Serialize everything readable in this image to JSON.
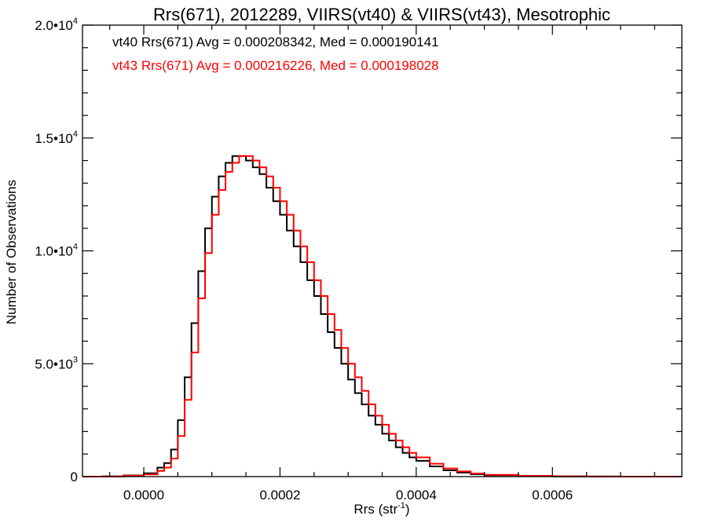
{
  "chart_data": {
    "type": "line",
    "step": true,
    "title": "Rrs(671), 2012289, VIIRS(vt40) & VIIRS(vt43), Mesotrophic",
    "xlabel": {
      "base": "Rrs (str",
      "sup": "-1",
      "tail": ")"
    },
    "ylabel": "Number of Observations",
    "xlim": [
      -9e-05,
      0.00079
    ],
    "ylim": [
      0,
      20000
    ],
    "x_ticks": [
      {
        "value": 0.0,
        "label": "0.0000"
      },
      {
        "value": 0.0002,
        "label": "0.0002"
      },
      {
        "value": 0.0004,
        "label": "0.0004"
      },
      {
        "value": 0.0006,
        "label": "0.0006"
      }
    ],
    "y_ticks": [
      {
        "value": 0,
        "mant": "0",
        "exp": ""
      },
      {
        "value": 5000,
        "mant": "5.0•10",
        "exp": "3"
      },
      {
        "value": 10000,
        "mant": "1.0•10",
        "exp": "4"
      },
      {
        "value": 15000,
        "mant": "1.5•10",
        "exp": "4"
      },
      {
        "value": 20000,
        "mant": "2.0•10",
        "exp": "4"
      }
    ],
    "annotations": [
      {
        "text": "vt40 Rrs(671) Avg = 0.000208342, Med = 0.000190141",
        "color": "#000000"
      },
      {
        "text": "vt43 Rrs(671) Avg = 0.000216226, Med = 0.000198028",
        "color": "#ff0000"
      }
    ],
    "series": [
      {
        "color": "#000000",
        "x": [
          -9e-05,
          -6e-05,
          -3e-05,
          0.0,
          2e-05,
          3e-05,
          4e-05,
          5e-05,
          6e-05,
          7e-05,
          8e-05,
          9e-05,
          0.0001,
          0.00011,
          0.00012,
          0.00013,
          0.00014,
          0.00015,
          0.00016,
          0.00017,
          0.00018,
          0.00019,
          0.0002,
          0.00021,
          0.00022,
          0.00023,
          0.00024,
          0.00025,
          0.00026,
          0.00027,
          0.00028,
          0.00029,
          0.0003,
          0.00031,
          0.00032,
          0.00033,
          0.00034,
          0.00035,
          0.00036,
          0.00037,
          0.00038,
          0.00039,
          0.0004,
          0.00042,
          0.00044,
          0.00046,
          0.00048,
          0.0005,
          0.00055,
          0.0006,
          0.00065,
          0.0007,
          0.00079
        ],
        "y": [
          0,
          10,
          50,
          150,
          400,
          600,
          1200,
          2500,
          4400,
          6800,
          9100,
          11000,
          12400,
          13300,
          13900,
          14200,
          14200,
          14000,
          13700,
          13400,
          12800,
          12200,
          11600,
          10900,
          10200,
          9500,
          8700,
          8000,
          7200,
          6400,
          5700,
          5000,
          4300,
          3700,
          3200,
          2700,
          2300,
          1900,
          1600,
          1300,
          1050,
          850,
          700,
          450,
          280,
          180,
          110,
          60,
          25,
          10,
          5,
          2,
          0
        ]
      },
      {
        "color": "#ff0000",
        "x": [
          -9e-05,
          -6e-05,
          -3e-05,
          0.0,
          2e-05,
          3e-05,
          4e-05,
          5e-05,
          6e-05,
          7e-05,
          8e-05,
          9e-05,
          0.0001,
          0.00011,
          0.00012,
          0.00013,
          0.00014,
          0.00015,
          0.00016,
          0.00017,
          0.00018,
          0.00019,
          0.0002,
          0.00021,
          0.00022,
          0.00023,
          0.00024,
          0.00025,
          0.00026,
          0.00027,
          0.00028,
          0.00029,
          0.0003,
          0.00031,
          0.00032,
          0.00033,
          0.00034,
          0.00035,
          0.00036,
          0.00037,
          0.00038,
          0.00039,
          0.0004,
          0.00042,
          0.00044,
          0.00046,
          0.00048,
          0.0005,
          0.00055,
          0.0006,
          0.00065,
          0.0007,
          0.00079
        ],
        "y": [
          0,
          10,
          40,
          100,
          250,
          400,
          800,
          1800,
          3400,
          5500,
          7900,
          9900,
          11600,
          12700,
          13500,
          13900,
          14200,
          14200,
          14000,
          13700,
          13300,
          12800,
          12200,
          11600,
          10900,
          10200,
          9500,
          8700,
          8000,
          7200,
          6500,
          5700,
          5000,
          4400,
          3800,
          3200,
          2700,
          2300,
          1900,
          1600,
          1300,
          1050,
          850,
          570,
          360,
          230,
          140,
          80,
          35,
          14,
          6,
          2,
          0
        ]
      }
    ]
  }
}
